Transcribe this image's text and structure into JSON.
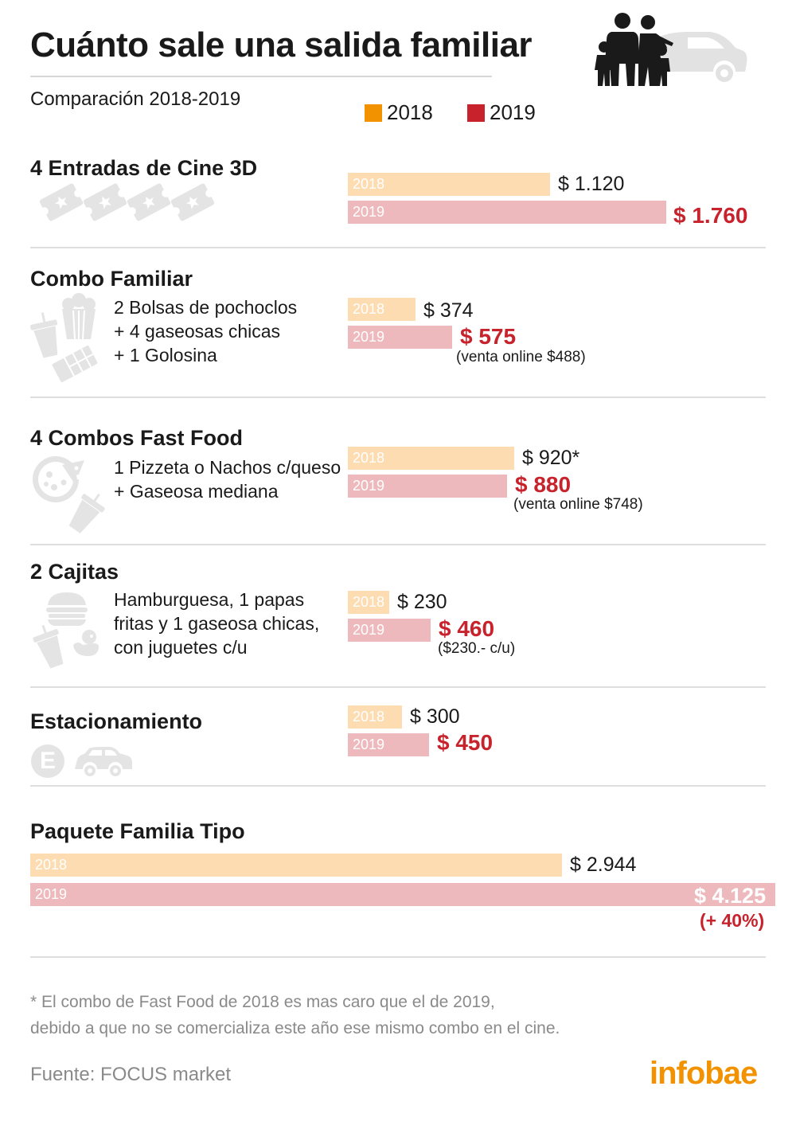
{
  "title": "Cuánto sale una salida familiar",
  "subtitle": "Comparación 2018-2019",
  "legend": [
    {
      "label": "2018",
      "color": "#f39200"
    },
    {
      "label": "2019",
      "color": "#c8232c"
    }
  ],
  "colors": {
    "bar_2018": "#fcdcb0",
    "bar_2019": "#edb9bc",
    "accent_2019": "#c8232c",
    "icon_grey": "#e4e4e4",
    "divider": "#dedede"
  },
  "bar_tag_2018": "2018",
  "bar_tag_2019": "2019",
  "sections": [
    {
      "title": "4 Entradas de Cine 3D",
      "description": [],
      "label_2018": "$ 1.120",
      "label_2019": "$ 1.760",
      "note": ""
    },
    {
      "title": "Combo Familiar",
      "description": [
        "2 Bolsas de pochoclos",
        "+ 4 gaseosas chicas",
        "+ 1 Golosina"
      ],
      "label_2018": "$ 374",
      "label_2019": "$ 575",
      "note": "(venta online $488)"
    },
    {
      "title": "4 Combos Fast Food",
      "description": [
        "1 Pizzeta o Nachos c/queso",
        "+ Gaseosa mediana"
      ],
      "label_2018": "$ 920*",
      "label_2019": "$ 880",
      "note": "(venta online $748)"
    },
    {
      "title": "2 Cajitas",
      "description": [
        "Hamburguesa, 1 papas",
        "fritas y 1 gaseosa chicas,",
        "con juguetes c/u"
      ],
      "label_2018": "$ 230",
      "label_2019": "$ 460",
      "note": "($230.- c/u)"
    },
    {
      "title": "Estacionamiento",
      "description": [],
      "label_2018": "$ 300",
      "label_2019": "$ 450",
      "note": ""
    }
  ],
  "total": {
    "title": "Paquete Familia Tipo",
    "label_2018": "$ 2.944",
    "label_2019": "$ 4.125",
    "change": "(+ 40%)"
  },
  "parking_sign_letter": "E",
  "icons": [
    "family-car-icon",
    "ticket-icon",
    "popcorn-icon",
    "soda-cup-icon",
    "candy-icon",
    "pizza-icon",
    "burger-icon",
    "toy-duck-icon",
    "parking-sign-icon",
    "car-icon"
  ],
  "footnote": [
    "* El combo de Fast Food de 2018 es mas caro que el de 2019,",
    "debido a que no se comercializa este año ese mismo combo en el cine."
  ],
  "source": "Fuente: FOCUS market",
  "brand": "infobae",
  "chart_data": {
    "type": "bar",
    "orientation": "horizontal",
    "categories": [
      "4 Entradas de Cine 3D",
      "Combo Familiar",
      "4 Combos Fast Food",
      "2 Cajitas",
      "Estacionamiento",
      "Paquete Familia Tipo"
    ],
    "series": [
      {
        "name": "2018",
        "values": [
          1120,
          374,
          920,
          230,
          300,
          2944
        ]
      },
      {
        "name": "2019",
        "values": [
          1760,
          575,
          880,
          460,
          450,
          4125
        ]
      }
    ],
    "units": "$"
  }
}
